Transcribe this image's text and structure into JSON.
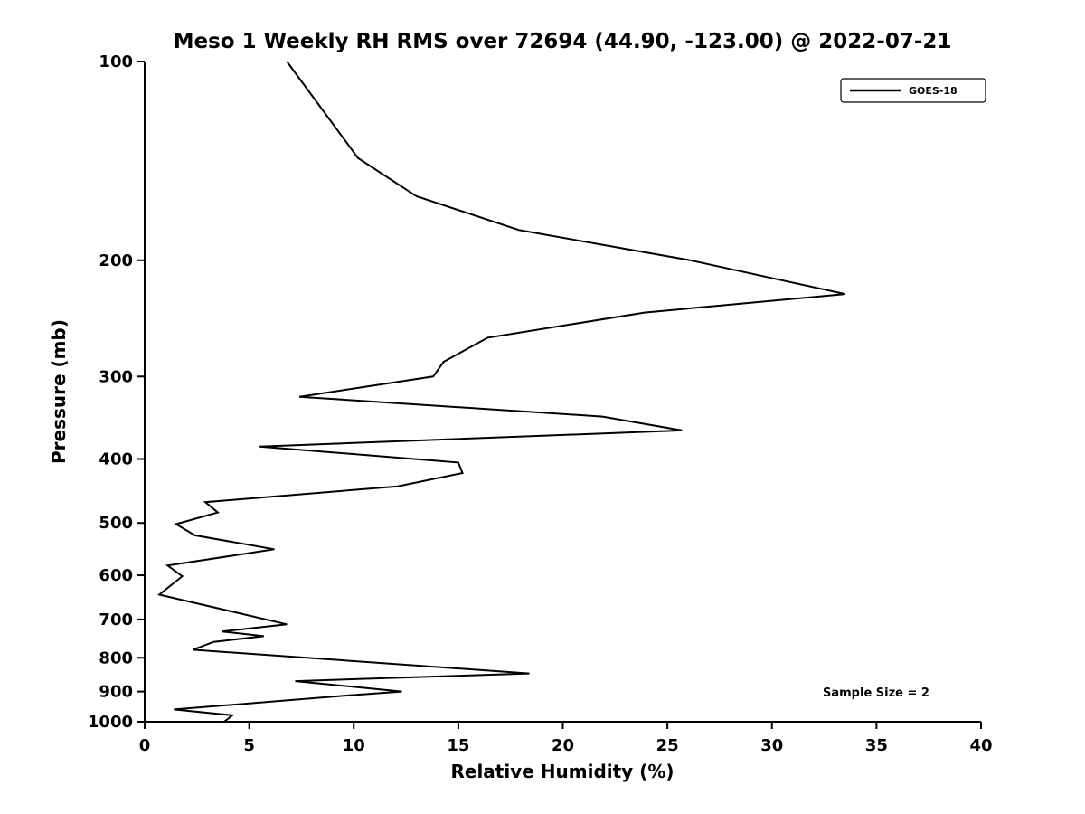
{
  "chart_data": {
    "type": "line",
    "title": "Meso 1 Weekly RH RMS over 72694 (44.90, -123.00) @ 2022-07-21",
    "xlabel": "Relative Humidity (%)",
    "ylabel": "Pressure (mb)",
    "xlim": [
      0,
      40
    ],
    "ylim": [
      1000,
      100
    ],
    "yscale": "log",
    "grid": false,
    "xticks": [
      0,
      5,
      10,
      15,
      20,
      25,
      30,
      35,
      40
    ],
    "yticks": [
      100,
      200,
      300,
      400,
      500,
      600,
      700,
      800,
      900,
      1000
    ],
    "legend": {
      "position": "upper right",
      "entries": [
        {
          "label": "GOES-18",
          "color": "#000000"
        }
      ]
    },
    "annotation": "Sample Size = 2",
    "series": [
      {
        "name": "GOES-18",
        "color": "#000000",
        "line_width": 2,
        "pressure_mb": [
          100,
          140,
          160,
          180,
          200,
          225,
          240,
          262,
          285,
          300,
          322,
          345,
          362,
          383,
          405,
          420,
          440,
          465,
          482,
          502,
          522,
          548,
          580,
          602,
          642,
          712,
          730,
          742,
          757,
          778,
          845,
          868,
          900,
          912,
          958,
          978,
          1000
        ],
        "rh_percent": [
          6.8,
          10.2,
          13.0,
          17.9,
          26.1,
          33.5,
          23.9,
          16.4,
          14.3,
          13.8,
          7.4,
          21.9,
          25.7,
          5.5,
          15.0,
          15.2,
          12.1,
          2.9,
          3.5,
          1.5,
          2.4,
          6.2,
          1.1,
          1.8,
          0.7,
          6.8,
          3.7,
          5.7,
          3.3,
          2.3,
          18.4,
          7.2,
          12.3,
          9.8,
          1.4,
          4.2,
          3.8
        ]
      }
    ]
  }
}
